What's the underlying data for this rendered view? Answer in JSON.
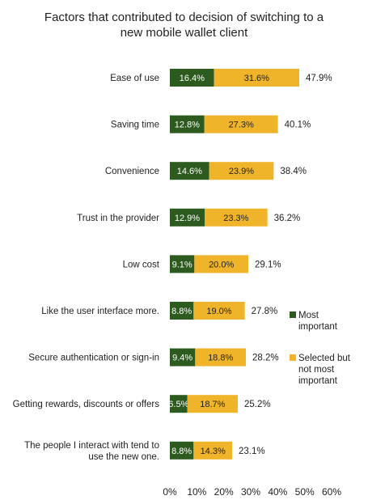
{
  "chart_data": {
    "type": "bar",
    "orientation": "horizontal",
    "stacked": true,
    "title_lines": [
      "Factors that contributed to decision of switching to a",
      "new mobile wallet client"
    ],
    "categories": [
      [
        "Ease of use"
      ],
      [
        "Saving time"
      ],
      [
        "Convenience"
      ],
      [
        "Trust in the provider"
      ],
      [
        "Low cost"
      ],
      [
        "Like the user interface more."
      ],
      [
        "Secure authentication or sign-in"
      ],
      [
        "Getting rewards, discounts or offers"
      ],
      [
        "The people I interact with tend to",
        "use the new one."
      ]
    ],
    "series": [
      {
        "name_lines": [
          "Most",
          "important"
        ],
        "color": "#2d5a1e",
        "label_color": "#ffffff",
        "values": [
          16.4,
          12.8,
          14.6,
          12.9,
          9.1,
          8.8,
          9.4,
          6.5,
          8.8
        ],
        "labels": [
          "16.4%",
          "12.8%",
          "14.6%",
          "12.9%",
          "9.1%",
          "8.8%",
          "9.4%",
          "6.5%",
          "8.8%"
        ]
      },
      {
        "name_lines": [
          "Selected but",
          "not most",
          "important"
        ],
        "color": "#f0b42a",
        "label_color": "#222222",
        "values": [
          31.6,
          27.3,
          23.9,
          23.3,
          20.0,
          19.0,
          18.8,
          18.7,
          14.3
        ],
        "labels": [
          "31.6%",
          "27.3%",
          "23.9%",
          "23.3%",
          "20.0%",
          "19.0%",
          "18.8%",
          "18.7%",
          "14.3%"
        ]
      }
    ],
    "totals": [
      47.9,
      40.1,
      38.4,
      36.2,
      29.1,
      27.8,
      28.2,
      25.2,
      23.1
    ],
    "total_labels": [
      "47.9%",
      "40.1%",
      "38.4%",
      "36.2%",
      "29.1%",
      "27.8%",
      "28.2%",
      "25.2%",
      "23.1%"
    ],
    "xlim": [
      0,
      60
    ],
    "xticks": [
      0,
      10,
      20,
      30,
      40,
      50,
      60
    ],
    "xtick_labels": [
      "0%",
      "10%",
      "20%",
      "30%",
      "40%",
      "50%",
      "60%"
    ],
    "grid": false,
    "legend_position": "right"
  }
}
